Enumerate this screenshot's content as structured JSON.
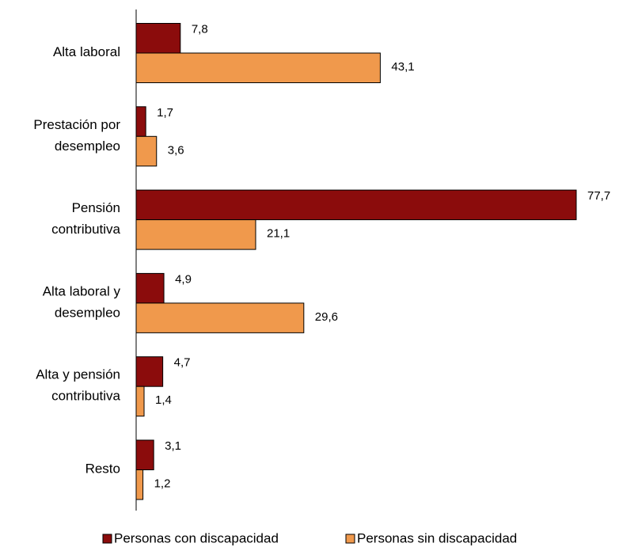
{
  "chart_data": {
    "type": "hbar",
    "categories": [
      [
        "Alta laboral"
      ],
      [
        "Prestación por",
        "desempleo"
      ],
      [
        "Pensión",
        "contributiva"
      ],
      [
        "Alta laboral y",
        "desempleo"
      ],
      [
        "Alta y pensión",
        "contributiva"
      ],
      [
        "Resto"
      ]
    ],
    "series": [
      {
        "name": "Personas con discapacidad",
        "color": "#8b0c0c",
        "values": [
          7.8,
          1.7,
          77.7,
          4.9,
          4.7,
          3.1
        ],
        "value_labels": [
          "7,8",
          "1,7",
          "77,7",
          "4,9",
          "4,7",
          "3,1"
        ]
      },
      {
        "name": "Personas sin discapacidad",
        "color": "#f0994c",
        "values": [
          43.1,
          3.6,
          21.1,
          29.6,
          1.4,
          1.2
        ],
        "value_labels": [
          "43,1",
          "3,6",
          "21,1",
          "29,6",
          "1,4",
          "1,2"
        ]
      }
    ],
    "legend": "bottom"
  }
}
